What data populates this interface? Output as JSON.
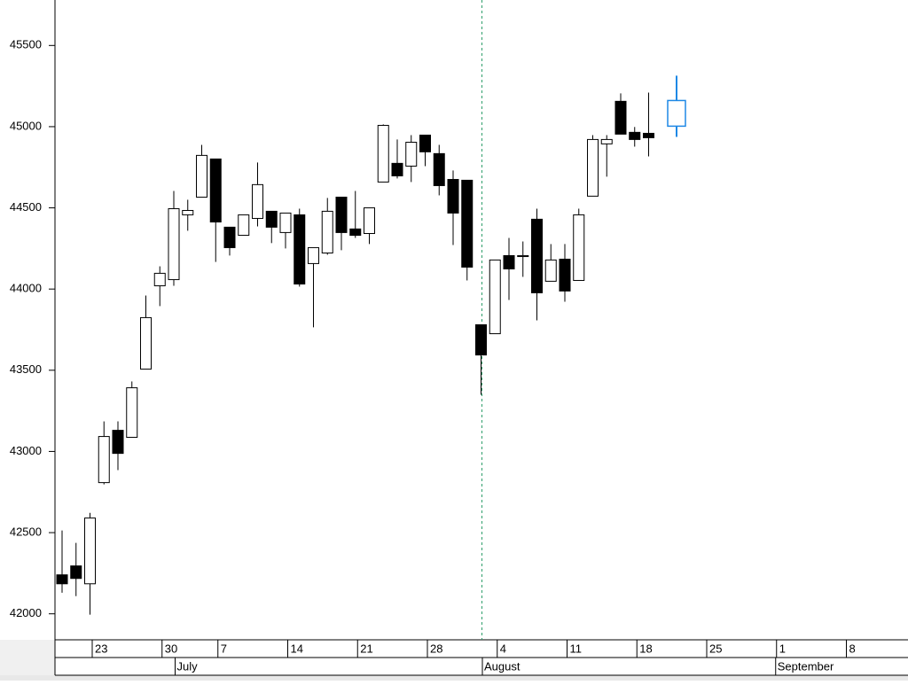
{
  "chart_data": {
    "type": "candlestick",
    "categories": [
      null,
      null,
      "23",
      null,
      null,
      null,
      null,
      "30",
      null,
      null,
      null,
      "7",
      null,
      null,
      null,
      null,
      "14",
      null,
      null,
      null,
      null,
      "21",
      null,
      null,
      null,
      null,
      "28",
      null,
      null,
      null,
      null,
      "4",
      null,
      null,
      null,
      null,
      "11",
      null,
      null,
      null,
      null,
      "18",
      null,
      null,
      null,
      null,
      "25",
      null,
      null,
      null,
      null,
      "1",
      null,
      null,
      null,
      null,
      "8",
      null,
      null,
      null,
      null
    ],
    "months": [
      null,
      null,
      null,
      null,
      null,
      null,
      null,
      null,
      "July",
      null,
      null,
      null,
      null,
      null,
      null,
      null,
      null,
      null,
      null,
      null,
      null,
      null,
      null,
      null,
      null,
      null,
      null,
      null,
      null,
      null,
      "August",
      null,
      null,
      null,
      null,
      null,
      null,
      null,
      null,
      null,
      null,
      null,
      null,
      null,
      null,
      null,
      null,
      null,
      null,
      null,
      null,
      "September",
      null,
      null,
      null,
      null,
      null,
      null,
      null,
      null,
      null
    ],
    "open": [
      42240,
      42295,
      42185,
      42808,
      43130,
      43087,
      43507,
      44020,
      44058,
      44457,
      44566,
      44801,
      44381,
      44331,
      44435,
      44479,
      44348,
      44457,
      44157,
      44222,
      44566,
      44370,
      44342,
      44659,
      44774,
      44757,
      44948,
      44834,
      44675,
      44670,
      43780,
      43725,
      44206,
      44200,
      44430,
      44048,
      44184,
      44053,
      44572,
      44894,
      45156,
      44965,
      44959,
      null,
      45003,
      null,
      null,
      null,
      null,
      null,
      null,
      null,
      null,
      null,
      null,
      null,
      null,
      null,
      null,
      null,
      null
    ],
    "high": [
      42513,
      42437,
      42622,
      43185,
      43185,
      43431,
      43960,
      44140,
      44604,
      44550,
      44888,
      44801,
      44381,
      44457,
      44779,
      44479,
      44468,
      44495,
      44255,
      44561,
      44566,
      44604,
      44500,
      45014,
      44921,
      44948,
      44948,
      44888,
      44730,
      44670,
      43780,
      44179,
      44315,
      44293,
      44495,
      44277,
      44277,
      44495,
      44948,
      44948,
      45205,
      44998,
      45210,
      null,
      45314,
      null,
      null,
      null,
      null,
      null,
      null,
      null,
      null,
      null,
      null,
      null,
      null,
      null,
      null,
      null,
      null
    ],
    "low": [
      42130,
      42109,
      41995,
      42797,
      42885,
      43087,
      43507,
      43895,
      44020,
      44359,
      44566,
      44167,
      44206,
      44331,
      44386,
      44283,
      44250,
      44015,
      43764,
      44211,
      44239,
      44315,
      44277,
      44659,
      44681,
      44659,
      44757,
      44577,
      44271,
      44053,
      43349,
      43725,
      43933,
      44075,
      43807,
      44048,
      43922,
      44053,
      44572,
      44692,
      44954,
      44877,
      44817,
      null,
      44937,
      null,
      null,
      null,
      null,
      null,
      null,
      null,
      null,
      null,
      null,
      null,
      null,
      null,
      null,
      null,
      null
    ],
    "close": [
      42185,
      42218,
      42590,
      43092,
      42988,
      43392,
      43824,
      44097,
      44495,
      44484,
      44823,
      44413,
      44255,
      44457,
      44643,
      44381,
      44468,
      44031,
      44255,
      44479,
      44348,
      44331,
      44500,
      45008,
      44697,
      44904,
      44845,
      44637,
      44468,
      44135,
      43594,
      44179,
      44124,
      44206,
      43977,
      44179,
      43988,
      44457,
      44921,
      44921,
      44954,
      44921,
      44932,
      null,
      45161,
      null,
      null,
      null,
      null,
      null,
      null,
      null,
      null,
      null,
      null,
      null,
      null,
      null,
      null,
      null,
      null
    ],
    "ylim": [
      41840,
      45780
    ],
    "yticks": [
      42000,
      42500,
      43000,
      43500,
      44000,
      44500,
      45000,
      45500
    ],
    "up_color": "#ffffff",
    "down_color": "#000000",
    "outline_color": "#000000",
    "current_color": "#1e88e5"
  }
}
